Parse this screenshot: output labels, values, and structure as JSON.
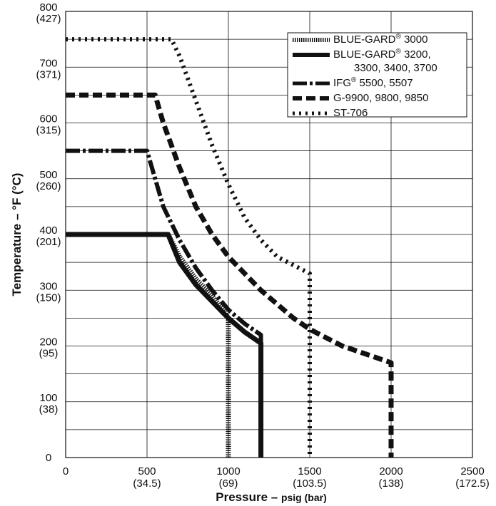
{
  "chart_data": {
    "type": "line",
    "xlabel_main": "Pressure – ",
    "xlabel_unit": "psig (bar)",
    "ylabel": "Temperature – °F (°C)",
    "xlim": [
      0,
      2500
    ],
    "ylim": [
      0,
      800
    ],
    "x_ticks": [
      {
        "value": 0,
        "label": "0",
        "sublabel": ""
      },
      {
        "value": 500,
        "label": "500",
        "sublabel": "(34.5)"
      },
      {
        "value": 1000,
        "label": "1000",
        "sublabel": "(69)"
      },
      {
        "value": 1500,
        "label": "1500",
        "sublabel": "(103.5)"
      },
      {
        "value": 2000,
        "label": "2000",
        "sublabel": "(138)"
      },
      {
        "value": 2500,
        "label": "2500",
        "sublabel": "(172.5)"
      }
    ],
    "y_ticks": [
      {
        "value": 0,
        "label": "0",
        "sublabel": ""
      },
      {
        "value": 100,
        "label": "100",
        "sublabel": "(38)"
      },
      {
        "value": 200,
        "label": "200",
        "sublabel": "(95)"
      },
      {
        "value": 300,
        "label": "300",
        "sublabel": "(150)"
      },
      {
        "value": 400,
        "label": "400",
        "sublabel": "(201)"
      },
      {
        "value": 500,
        "label": "500",
        "sublabel": "(260)"
      },
      {
        "value": 600,
        "label": "600",
        "sublabel": "(315)"
      },
      {
        "value": 700,
        "label": "700",
        "sublabel": "(371)"
      },
      {
        "value": 800,
        "label": "800",
        "sublabel": "(427)"
      }
    ],
    "grid": true,
    "legend_position": "top-right",
    "series": [
      {
        "name": "BLUE-GARD® 3000",
        "name_lines": [
          "BLUE-GARD",
          "® 3000"
        ],
        "style": "fine-dotted",
        "points": [
          [
            0,
            400
          ],
          [
            630,
            400
          ],
          [
            700,
            360
          ],
          [
            800,
            320
          ],
          [
            900,
            290
          ],
          [
            1000,
            250
          ],
          [
            1000,
            0
          ]
        ]
      },
      {
        "name": "BLUE-GARD® 3200, 3300, 3400, 3700",
        "name_lines": [
          "BLUE-GARD",
          "® 3200,",
          "3300, 3400, 3700"
        ],
        "style": "solid",
        "points": [
          [
            0,
            400
          ],
          [
            630,
            400
          ],
          [
            700,
            350
          ],
          [
            800,
            310
          ],
          [
            900,
            280
          ],
          [
            1000,
            250
          ],
          [
            1100,
            225
          ],
          [
            1200,
            205
          ],
          [
            1200,
            0
          ]
        ]
      },
      {
        "name": "IFG® 5500, 5507",
        "name_lines": [
          "IFG",
          "® 5500, 5507"
        ],
        "style": "dash-dot",
        "points": [
          [
            0,
            550
          ],
          [
            500,
            550
          ],
          [
            550,
            500
          ],
          [
            600,
            450
          ],
          [
            700,
            390
          ],
          [
            800,
            340
          ],
          [
            900,
            300
          ],
          [
            1000,
            265
          ],
          [
            1100,
            240
          ],
          [
            1200,
            220
          ],
          [
            1200,
            0
          ]
        ]
      },
      {
        "name": "G-9900, 9800, 9850",
        "name_lines": [
          "G-9900, 9800, 9850"
        ],
        "style": "dashed",
        "points": [
          [
            0,
            650
          ],
          [
            550,
            650
          ],
          [
            600,
            600
          ],
          [
            700,
            520
          ],
          [
            800,
            450
          ],
          [
            900,
            400
          ],
          [
            1000,
            360
          ],
          [
            1100,
            330
          ],
          [
            1200,
            300
          ],
          [
            1300,
            275
          ],
          [
            1400,
            250
          ],
          [
            1500,
            230
          ],
          [
            1600,
            215
          ],
          [
            1700,
            200
          ],
          [
            1800,
            190
          ],
          [
            1900,
            180
          ],
          [
            2000,
            170
          ],
          [
            2000,
            0
          ]
        ]
      },
      {
        "name": "ST-706",
        "name_lines": [
          "ST-706"
        ],
        "style": "dotted",
        "points": [
          [
            0,
            750
          ],
          [
            650,
            750
          ],
          [
            700,
            720
          ],
          [
            800,
            640
          ],
          [
            900,
            560
          ],
          [
            1000,
            490
          ],
          [
            1100,
            430
          ],
          [
            1200,
            390
          ],
          [
            1300,
            360
          ],
          [
            1400,
            345
          ],
          [
            1500,
            330
          ],
          [
            1500,
            0
          ]
        ]
      }
    ]
  }
}
